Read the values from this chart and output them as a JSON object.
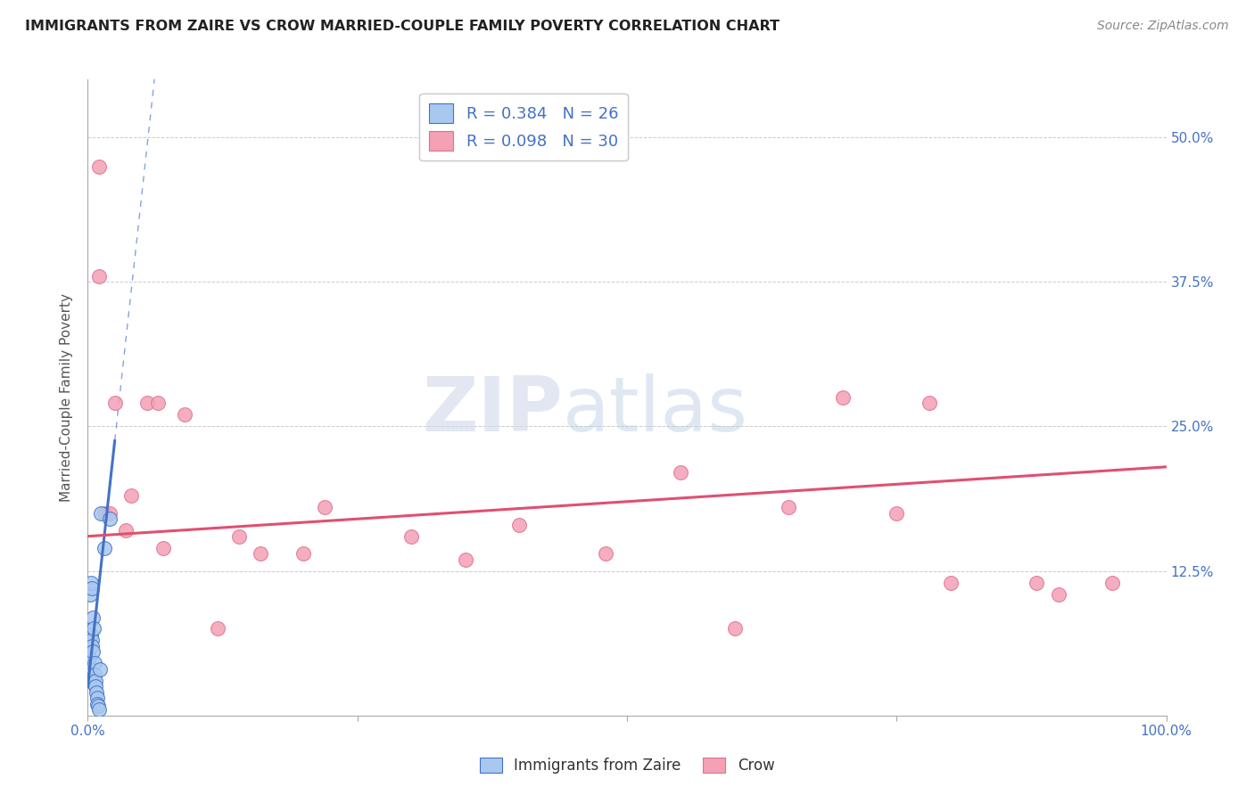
{
  "title": "IMMIGRANTS FROM ZAIRE VS CROW MARRIED-COUPLE FAMILY POVERTY CORRELATION CHART",
  "source": "Source: ZipAtlas.com",
  "ylabel": "Married-Couple Family Poverty",
  "xlim": [
    0.0,
    100.0
  ],
  "ylim": [
    0.0,
    55.0
  ],
  "yticks": [
    0.0,
    12.5,
    25.0,
    37.5,
    50.0
  ],
  "xticks": [
    0.0,
    25.0,
    50.0,
    75.0,
    100.0
  ],
  "xtick_labels": [
    "0.0%",
    "",
    "",
    "",
    "100.0%"
  ],
  "ytick_labels": [
    "",
    "12.5%",
    "25.0%",
    "37.5%",
    "50.0%"
  ],
  "grid_color": "#cccccc",
  "background_color": "#ffffff",
  "blue_color": "#a8c8f0",
  "pink_color": "#f4a0b5",
  "blue_R": 0.384,
  "blue_N": 26,
  "pink_R": 0.098,
  "pink_N": 30,
  "legend_label_blue": "Immigrants from Zaire",
  "legend_label_pink": "Crow",
  "watermark_zip": "ZIP",
  "watermark_atlas": "atlas",
  "blue_scatter_x": [
    0.1,
    0.15,
    0.2,
    0.25,
    0.3,
    0.35,
    0.4,
    0.45,
    0.5,
    0.55,
    0.6,
    0.65,
    0.7,
    0.75,
    0.8,
    0.85,
    0.9,
    0.95,
    1.0,
    1.1,
    1.2,
    1.5,
    2.0,
    0.2,
    0.3,
    0.4
  ],
  "blue_scatter_y": [
    5.0,
    4.0,
    3.5,
    3.0,
    7.0,
    6.5,
    6.0,
    5.5,
    8.5,
    7.5,
    4.5,
    3.5,
    3.0,
    2.5,
    2.0,
    1.5,
    1.0,
    0.8,
    0.5,
    4.0,
    17.5,
    14.5,
    17.0,
    10.5,
    11.5,
    11.0
  ],
  "pink_scatter_x": [
    1.0,
    2.5,
    5.5,
    9.0,
    14.0,
    22.0,
    30.0,
    40.0,
    55.0,
    70.0,
    78.0,
    88.0,
    95.0,
    1.5,
    3.5,
    7.0,
    16.0,
    35.0,
    48.0,
    65.0,
    80.0,
    90.0,
    1.0,
    2.0,
    4.0,
    6.5,
    12.0,
    20.0,
    60.0,
    75.0
  ],
  "pink_scatter_y": [
    47.5,
    27.0,
    27.0,
    26.0,
    15.5,
    18.0,
    15.5,
    16.5,
    21.0,
    27.5,
    27.0,
    11.5,
    11.5,
    17.5,
    16.0,
    14.5,
    14.0,
    13.5,
    14.0,
    18.0,
    11.5,
    10.5,
    38.0,
    17.5,
    19.0,
    27.0,
    7.5,
    14.0,
    7.5,
    17.5
  ],
  "title_color": "#222222",
  "axis_label_color": "#555555",
  "tick_color_blue": "#4472c4",
  "regression_blue_color": "#4472c4",
  "regression_pink_color": "#e05070",
  "legend_R_color": "#4472c4",
  "blue_reg_line_x0": 0.0,
  "blue_reg_line_x1": 2.5,
  "blue_reg_slope": 8.5,
  "blue_reg_intercept": 2.5,
  "blue_dash_x0": 0.0,
  "blue_dash_x1": 45.0,
  "pink_reg_x0": 0.0,
  "pink_reg_x1": 100.0,
  "pink_reg_slope": 0.06,
  "pink_reg_intercept": 15.5
}
